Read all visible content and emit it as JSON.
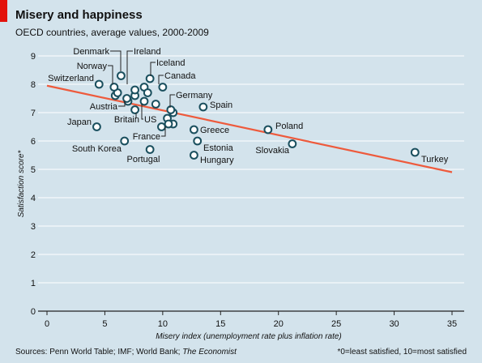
{
  "header": {
    "title": "Misery and happiness",
    "subtitle": "OECD countries, average values, 2000-2009"
  },
  "footer": {
    "source_prefix": "Sources: Penn World Table; IMF; World Bank; ",
    "source_italic": "The Economist",
    "footnote": "*0=least satisfied, 10=most satisfied"
  },
  "colors": {
    "background": "#d3e3ec",
    "gridline": "#ffffff",
    "trend_line": "#ee5a3c",
    "point_stroke": "#1a4f5e",
    "point_fill": "#ffffff",
    "accent": "#e3120b"
  },
  "chart_data": {
    "type": "scatter",
    "xlabel": "Misery index (unemployment rate plus inflation rate)",
    "ylabel": "Satisfaction score*",
    "xlim": [
      0,
      35
    ],
    "ylim": [
      0,
      9
    ],
    "xticks": [
      0,
      5,
      10,
      15,
      20,
      25,
      30,
      35
    ],
    "yticks": [
      0,
      1,
      2,
      3,
      4,
      5,
      6,
      7,
      8,
      9
    ],
    "grid": "horizontal",
    "trend_line": {
      "from": [
        0,
        7.95
      ],
      "to": [
        35,
        4.9
      ]
    },
    "labeled_points": [
      {
        "name": "Denmark",
        "x": 6.4,
        "y": 8.3
      },
      {
        "name": "Ireland",
        "x": 7.6,
        "y": 7.8
      },
      {
        "name": "Norway",
        "x": 5.8,
        "y": 7.9
      },
      {
        "name": "Switzerland",
        "x": 4.5,
        "y": 8.0
      },
      {
        "name": "Iceland",
        "x": 8.9,
        "y": 8.2
      },
      {
        "name": "Canada",
        "x": 10.0,
        "y": 7.9
      },
      {
        "name": "Austria",
        "x": 6.9,
        "y": 7.5
      },
      {
        "name": "Britain",
        "x": 7.6,
        "y": 7.1
      },
      {
        "name": "US",
        "x": 8.4,
        "y": 7.4
      },
      {
        "name": "Germany",
        "x": 10.7,
        "y": 7.1
      },
      {
        "name": "Spain",
        "x": 13.5,
        "y": 7.2
      },
      {
        "name": "Japan",
        "x": 4.3,
        "y": 6.5
      },
      {
        "name": "France",
        "x": 10.5,
        "y": 6.6
      },
      {
        "name": "Greece",
        "x": 12.7,
        "y": 6.4
      },
      {
        "name": "Estonia",
        "x": 13.0,
        "y": 6.0
      },
      {
        "name": "Hungary",
        "x": 12.7,
        "y": 5.5
      },
      {
        "name": "South Korea",
        "x": 6.7,
        "y": 6.0
      },
      {
        "name": "Portugal",
        "x": 8.9,
        "y": 5.7
      },
      {
        "name": "Poland",
        "x": 19.1,
        "y": 6.4
      },
      {
        "name": "Slovakia",
        "x": 21.2,
        "y": 5.9
      },
      {
        "name": "Turkey",
        "x": 31.8,
        "y": 5.6
      }
    ],
    "unlabeled_points": [
      {
        "x": 5.9,
        "y": 7.6
      },
      {
        "x": 6.1,
        "y": 7.7
      },
      {
        "x": 7.0,
        "y": 7.4
      },
      {
        "x": 7.6,
        "y": 7.6
      },
      {
        "x": 8.4,
        "y": 7.9
      },
      {
        "x": 8.7,
        "y": 7.7
      },
      {
        "x": 9.4,
        "y": 7.3
      },
      {
        "x": 9.9,
        "y": 6.5
      },
      {
        "x": 10.4,
        "y": 6.8
      },
      {
        "x": 10.9,
        "y": 6.6
      },
      {
        "x": 10.9,
        "y": 7.0
      }
    ]
  }
}
